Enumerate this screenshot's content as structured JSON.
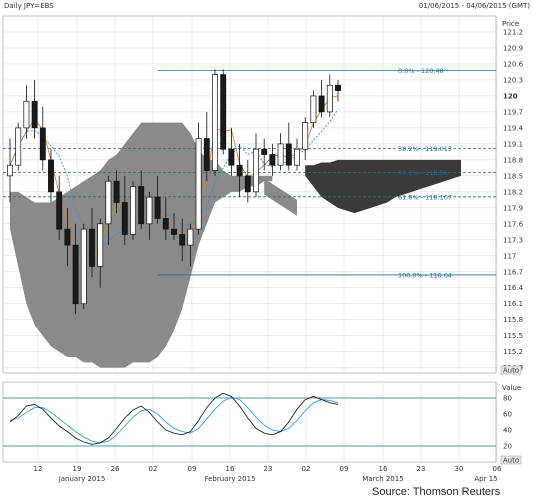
{
  "header": {
    "title": "Daily JPY=EBS",
    "date_range": "01/06/2015 - 04/06/2015 (GMT)"
  },
  "price_panel": {
    "axis_title": "Price",
    "auto_label": "Auto",
    "highlight_tick": "120",
    "ticks": [
      "121.2",
      "120.9",
      "120.6",
      "120.3",
      "120",
      "119.7",
      "119.4",
      "119.1",
      "118.8",
      "118.5",
      "118.2",
      "117.9",
      "117.6",
      "117.3",
      "117",
      "116.7",
      "116.4",
      "116.1",
      "115.8",
      "115.5",
      "115.2",
      "114.9"
    ]
  },
  "indicator_panel": {
    "axis_title": "Value",
    "auto_label": "Auto",
    "ticks": [
      "80",
      "60",
      "40",
      "20"
    ]
  },
  "x_axis": {
    "day_ticks": [
      "12",
      "19",
      "26",
      "02",
      "09",
      "16",
      "23",
      "02",
      "09",
      "16",
      "23",
      "30",
      "06"
    ],
    "month_labels": [
      "January 2015",
      "February 2015",
      "March 2015",
      "Apr 15"
    ]
  },
  "source": "Source: Thomson Reuters",
  "colors": {
    "candle_up": "#ffffff",
    "candle_down": "#1a1a1a",
    "cloud_light": "#8a8a8a",
    "cloud_dark": "#3a3a3a",
    "fib_line": "#1b6f9a",
    "ma_orange": "#d9822b",
    "ma_blue": "#3a8fc8",
    "stoch_black": "#222222",
    "stoch_blue": "#2aa0d8",
    "grid": "#d8d8d8"
  },
  "chart_data": {
    "type": "candlestick",
    "title": "Daily JPY=EBS",
    "ylabel": "Price",
    "ylim": [
      114.8,
      121.5
    ],
    "grid": true,
    "candles": [
      {
        "o": 118.5,
        "h": 119.2,
        "l": 118.0,
        "c": 118.7
      },
      {
        "o": 118.7,
        "h": 119.5,
        "l": 118.6,
        "c": 119.4
      },
      {
        "o": 119.4,
        "h": 120.2,
        "l": 119.2,
        "c": 119.9
      },
      {
        "o": 119.9,
        "h": 120.3,
        "l": 119.2,
        "c": 119.4
      },
      {
        "o": 119.4,
        "h": 119.8,
        "l": 118.6,
        "c": 118.8
      },
      {
        "o": 118.8,
        "h": 119.0,
        "l": 118.0,
        "c": 118.2
      },
      {
        "o": 118.2,
        "h": 118.5,
        "l": 117.3,
        "c": 117.5
      },
      {
        "o": 117.5,
        "h": 117.9,
        "l": 116.8,
        "c": 117.2
      },
      {
        "o": 117.2,
        "h": 117.6,
        "l": 115.9,
        "c": 116.1
      },
      {
        "o": 116.1,
        "h": 117.6,
        "l": 116.0,
        "c": 117.5
      },
      {
        "o": 117.5,
        "h": 117.9,
        "l": 116.6,
        "c": 116.8
      },
      {
        "o": 116.8,
        "h": 117.7,
        "l": 116.4,
        "c": 117.6
      },
      {
        "o": 117.6,
        "h": 118.5,
        "l": 117.2,
        "c": 118.4
      },
      {
        "o": 118.4,
        "h": 118.6,
        "l": 117.8,
        "c": 118.0
      },
      {
        "o": 118.0,
        "h": 118.5,
        "l": 117.2,
        "c": 117.4
      },
      {
        "o": 117.4,
        "h": 118.4,
        "l": 117.3,
        "c": 118.3
      },
      {
        "o": 118.3,
        "h": 118.6,
        "l": 117.5,
        "c": 117.6
      },
      {
        "o": 117.6,
        "h": 118.2,
        "l": 117.3,
        "c": 118.1
      },
      {
        "o": 118.1,
        "h": 118.5,
        "l": 117.6,
        "c": 117.7
      },
      {
        "o": 117.7,
        "h": 118.1,
        "l": 117.3,
        "c": 117.5
      },
      {
        "o": 117.5,
        "h": 117.8,
        "l": 117.3,
        "c": 117.4
      },
      {
        "o": 117.4,
        "h": 117.7,
        "l": 116.9,
        "c": 117.2
      },
      {
        "o": 117.2,
        "h": 117.6,
        "l": 116.8,
        "c": 117.5
      },
      {
        "o": 117.5,
        "h": 119.5,
        "l": 117.4,
        "c": 119.2
      },
      {
        "o": 119.2,
        "h": 119.7,
        "l": 118.4,
        "c": 118.6
      },
      {
        "o": 118.6,
        "h": 120.5,
        "l": 118.5,
        "c": 120.4
      },
      {
        "o": 120.4,
        "h": 120.5,
        "l": 118.9,
        "c": 119.0
      },
      {
        "o": 119.0,
        "h": 119.4,
        "l": 118.5,
        "c": 118.7
      },
      {
        "o": 118.7,
        "h": 119.1,
        "l": 118.1,
        "c": 118.5
      },
      {
        "o": 118.5,
        "h": 118.8,
        "l": 118.0,
        "c": 118.2
      },
      {
        "o": 118.2,
        "h": 119.3,
        "l": 118.1,
        "c": 119.0
      },
      {
        "o": 119.0,
        "h": 119.2,
        "l": 118.6,
        "c": 118.9
      },
      {
        "o": 118.9,
        "h": 119.1,
        "l": 118.5,
        "c": 118.7
      },
      {
        "o": 118.7,
        "h": 119.3,
        "l": 118.6,
        "c": 119.1
      },
      {
        "o": 119.1,
        "h": 119.5,
        "l": 118.6,
        "c": 118.7
      },
      {
        "o": 118.7,
        "h": 119.2,
        "l": 118.6,
        "c": 119.0
      },
      {
        "o": 119.0,
        "h": 119.6,
        "l": 118.8,
        "c": 119.5
      },
      {
        "o": 119.5,
        "h": 120.1,
        "l": 119.4,
        "c": 120.0
      },
      {
        "o": 120.0,
        "h": 120.3,
        "l": 119.6,
        "c": 119.7
      },
      {
        "o": 119.7,
        "h": 120.4,
        "l": 119.6,
        "c": 120.2
      },
      {
        "o": 120.2,
        "h": 120.3,
        "l": 119.9,
        "c": 120.1
      }
    ],
    "fibonacci": [
      {
        "label": "0.0%",
        "value": 120.48
      },
      {
        "label": "38.2%",
        "value": 119.013
      },
      {
        "label": "50.0%",
        "value": 118.56
      },
      {
        "label": "61.8%",
        "value": 118.107
      },
      {
        "label": "100.0%",
        "value": 116.64
      }
    ],
    "stochastic": {
      "ylim": [
        0,
        100
      ],
      "k": [
        50,
        58,
        70,
        72,
        66,
        55,
        45,
        38,
        30,
        25,
        22,
        24,
        30,
        42,
        55,
        65,
        70,
        62,
        50,
        40,
        36,
        34,
        38,
        52,
        68,
        80,
        86,
        82,
        70,
        55,
        42,
        36,
        34,
        38,
        50,
        66,
        78,
        82,
        78,
        74,
        72
      ],
      "d": [
        52,
        55,
        62,
        68,
        68,
        62,
        54,
        46,
        38,
        31,
        26,
        24,
        26,
        34,
        45,
        56,
        64,
        66,
        60,
        50,
        42,
        38,
        36,
        42,
        54,
        66,
        76,
        81,
        78,
        68,
        56,
        46,
        40,
        38,
        42,
        52,
        64,
        74,
        78,
        77,
        74
      ],
      "levels": [
        80,
        20
      ]
    }
  }
}
